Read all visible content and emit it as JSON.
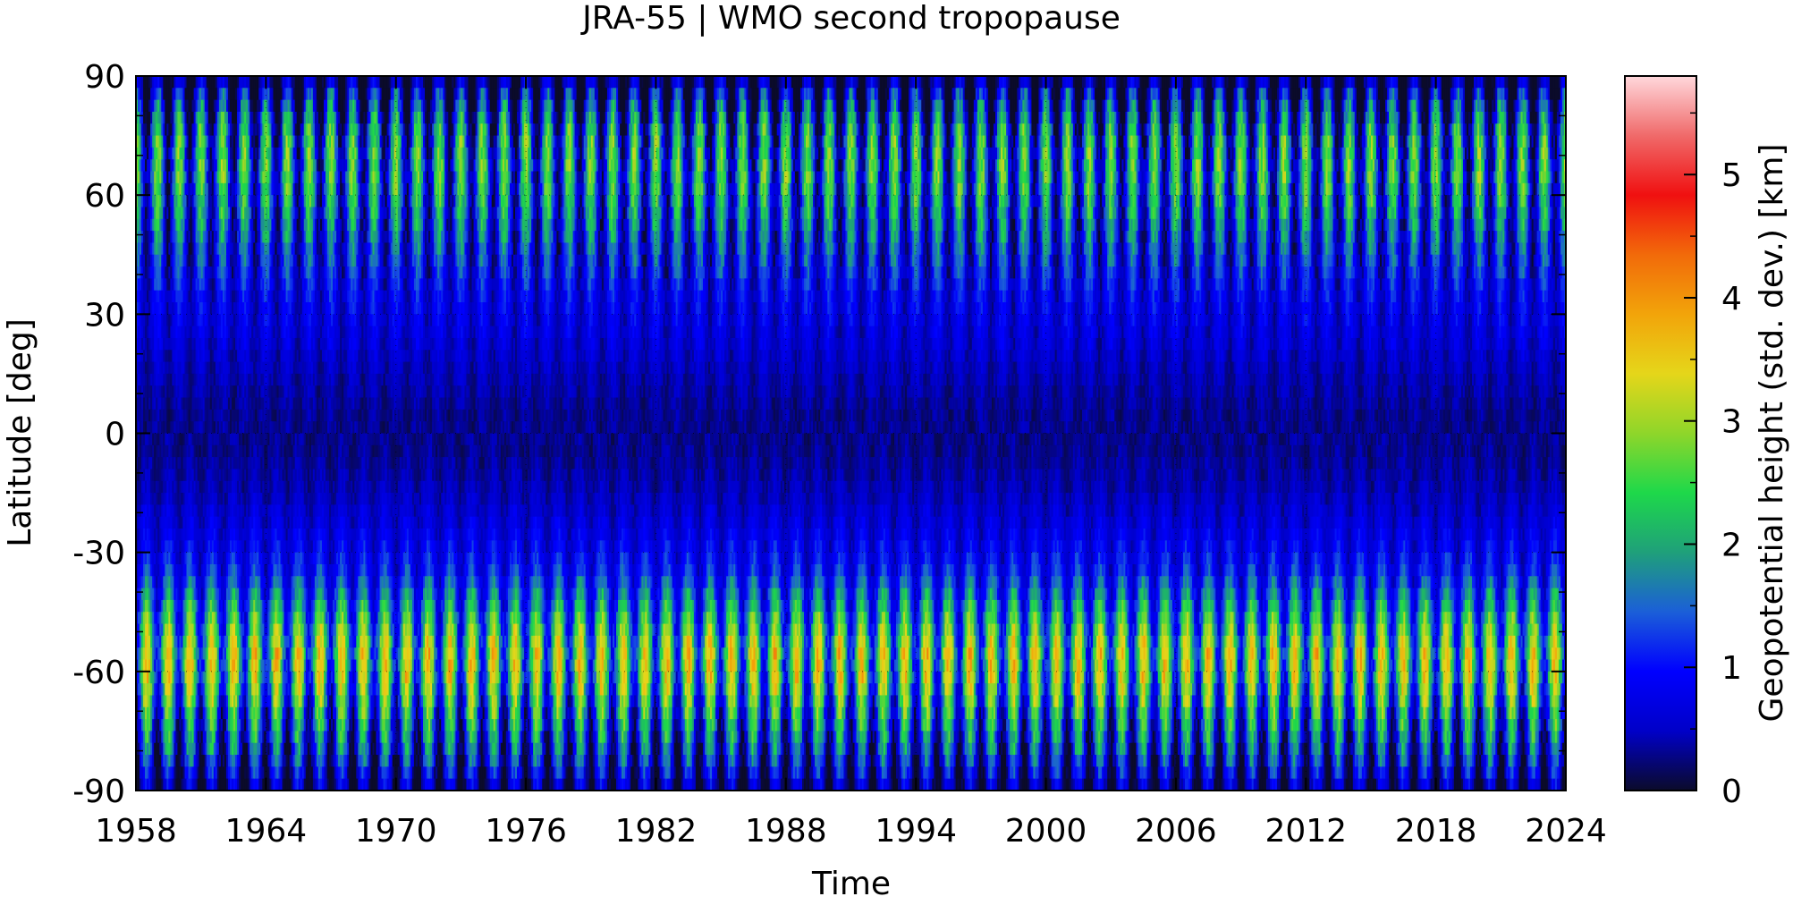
{
  "chart_data": {
    "type": "heatmap",
    "title": "JRA-55 | WMO second tropopause",
    "xlabel": "Time",
    "ylabel": "Latitude [deg]",
    "colorbar_label": "Geopotential height (std. dev.) [km]",
    "xlim": [
      1958,
      2024
    ],
    "ylim": [
      -90,
      90
    ],
    "zlim": [
      0,
      5.8
    ],
    "x_ticks": [
      "1958",
      "1964",
      "1970",
      "1976",
      "1982",
      "1988",
      "1994",
      "2000",
      "2006",
      "2012",
      "2018",
      "2024"
    ],
    "y_ticks": [
      "90",
      "60",
      "30",
      "0",
      "-30",
      "-60",
      "-90"
    ],
    "colorbar_ticks": [
      "0",
      "1",
      "2",
      "3",
      "4",
      "5"
    ],
    "grid": true,
    "colormap": [
      "#0b0b2a",
      "#0000c8",
      "#0000ff",
      "#1b5fd8",
      "#1fa07a",
      "#1ed84a",
      "#8fd62a",
      "#e5d61a",
      "#f2a40a",
      "#f26a0a",
      "#f01010",
      "#f06a6a",
      "#ffd8dc"
    ],
    "latitude_profile": [
      {
        "lat": 90,
        "mean": 0.2,
        "amp": 0.3
      },
      {
        "lat": 85,
        "mean": 0.6,
        "amp": 1.2
      },
      {
        "lat": 75,
        "mean": 1.4,
        "amp": 1.4
      },
      {
        "lat": 65,
        "mean": 1.6,
        "amp": 1.3
      },
      {
        "lat": 55,
        "mean": 1.3,
        "amp": 1.1
      },
      {
        "lat": 45,
        "mean": 1.0,
        "amp": 0.8
      },
      {
        "lat": 35,
        "mean": 0.8,
        "amp": 0.4
      },
      {
        "lat": 25,
        "mean": 0.65,
        "amp": 0.25
      },
      {
        "lat": 15,
        "mean": 0.45,
        "amp": 0.15
      },
      {
        "lat": 5,
        "mean": 0.3,
        "amp": 0.1
      },
      {
        "lat": -5,
        "mean": 0.3,
        "amp": 0.1
      },
      {
        "lat": -15,
        "mean": 0.45,
        "amp": 0.15
      },
      {
        "lat": -25,
        "mean": 0.7,
        "amp": 0.25
      },
      {
        "lat": -35,
        "mean": 1.0,
        "amp": 0.5
      },
      {
        "lat": -45,
        "mean": 1.7,
        "amp": 1.0
      },
      {
        "lat": -55,
        "mean": 2.4,
        "amp": 1.4
      },
      {
        "lat": -62,
        "mean": 2.2,
        "amp": 1.4
      },
      {
        "lat": -70,
        "mean": 1.6,
        "amp": 1.3
      },
      {
        "lat": -80,
        "mean": 1.0,
        "amp": 1.1
      },
      {
        "lat": -90,
        "mean": 0.3,
        "amp": 0.5
      }
    ]
  }
}
